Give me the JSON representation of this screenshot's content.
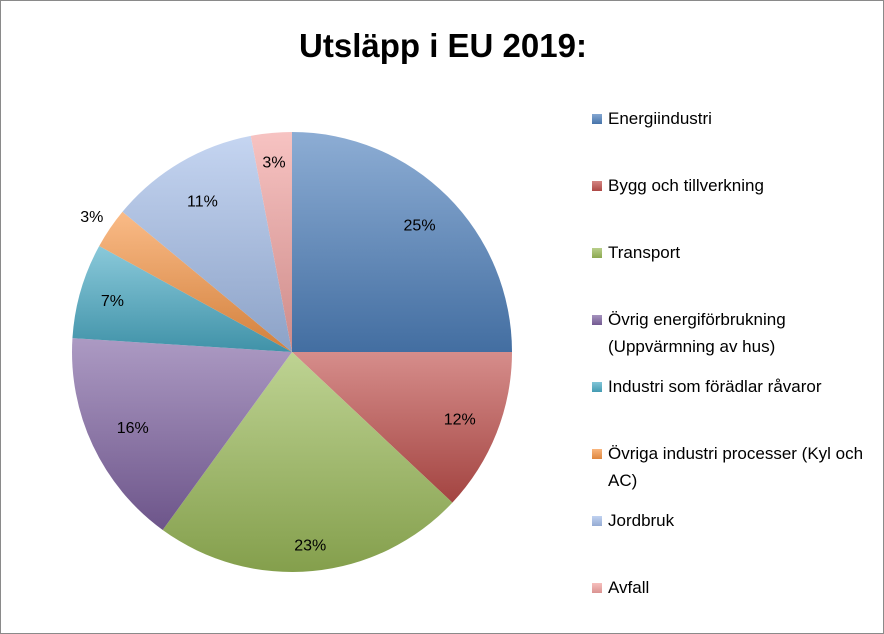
{
  "chart_data": {
    "type": "pie",
    "title": "Utsläpp i EU 2019:",
    "legend_position": "right",
    "start_angle": "12 o'clock, clockwise",
    "slices": [
      {
        "label": "Energiindustri",
        "value": 25,
        "data_label": "25%",
        "color": "#4F81BD"
      },
      {
        "label": "Bygg och tillverkning",
        "value": 12,
        "data_label": "12%",
        "color": "#C0504D"
      },
      {
        "label": "Transport",
        "value": 23,
        "data_label": "23%",
        "color": "#9BBB59"
      },
      {
        "label": "Övrig energiförbrukning (Uppvärmning av hus)",
        "value": 16,
        "data_label": "16%",
        "color": "#8064A2"
      },
      {
        "label": "Industri som förädlar råvaror",
        "value": 7,
        "data_label": "7%",
        "color": "#4BACC6"
      },
      {
        "label": "Övriga industri processer (Kyl och AC)",
        "value": 3,
        "data_label": "3%",
        "color": "#F79646"
      },
      {
        "label": "Jordbruk",
        "value": 11,
        "data_label": "11%",
        "color": "#A5BEEA"
      },
      {
        "label": "Avfall",
        "value": 3,
        "data_label": "3%",
        "color": "#F2A3A1"
      }
    ]
  }
}
